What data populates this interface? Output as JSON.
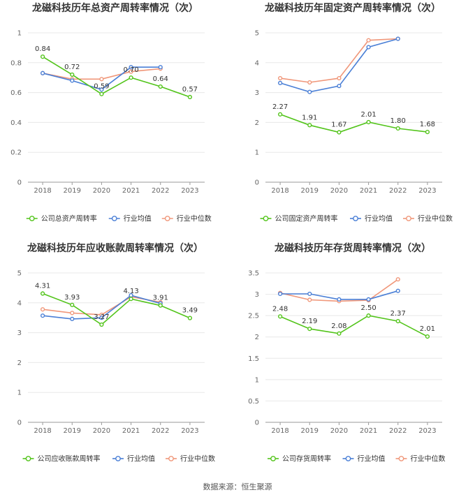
{
  "source_label": "数据来源：恒生聚源",
  "chart_data": [
    {
      "type": "line",
      "title": "龙磁科技历年总资产周转率情况（次）",
      "categories": [
        "2018",
        "2019",
        "2020",
        "2021",
        "2022",
        "2023"
      ],
      "ylim": [
        0,
        1
      ],
      "yticks": [
        "0",
        "0.2",
        "0.4",
        "0.6",
        "0.8",
        "1"
      ],
      "grid": true,
      "legend_position": "bottom",
      "series": [
        {
          "name": "公司总资产周转率",
          "color": "#52c41a",
          "values": [
            0.84,
            0.72,
            0.59,
            0.7,
            0.64,
            0.57
          ],
          "labels": [
            "0.84",
            "0.72",
            "0.59",
            "0.70",
            "0.64",
            "0.57"
          ]
        },
        {
          "name": "行业均值",
          "color": "#4a7fd6",
          "values": [
            0.73,
            0.68,
            0.62,
            0.77,
            0.77,
            null
          ]
        },
        {
          "name": "行业中位数",
          "color": "#f0977a",
          "values": [
            0.73,
            0.69,
            0.69,
            0.74,
            0.76,
            null
          ]
        }
      ]
    },
    {
      "type": "line",
      "title": "龙磁科技历年固定资产周转率情况（次）",
      "categories": [
        "2018",
        "2019",
        "2020",
        "2021",
        "2022",
        "2023"
      ],
      "ylim": [
        0,
        5
      ],
      "yticks": [
        "0",
        "1",
        "2",
        "3",
        "4",
        "5"
      ],
      "grid": true,
      "legend_position": "bottom",
      "series": [
        {
          "name": "公司固定资产周转率",
          "color": "#52c41a",
          "values": [
            2.27,
            1.91,
            1.67,
            2.01,
            1.8,
            1.68
          ],
          "labels": [
            "2.27",
            "1.91",
            "1.67",
            "2.01",
            "1.80",
            "1.68"
          ]
        },
        {
          "name": "行业均值",
          "color": "#4a7fd6",
          "values": [
            3.32,
            3.02,
            3.22,
            4.52,
            4.8,
            null
          ]
        },
        {
          "name": "行业中位数",
          "color": "#f0977a",
          "values": [
            3.48,
            3.34,
            3.48,
            4.75,
            4.8,
            null
          ]
        }
      ]
    },
    {
      "type": "line",
      "title": "龙磁科技历年应收账款周转率情况（次）",
      "categories": [
        "2018",
        "2019",
        "2020",
        "2021",
        "2022",
        "2023"
      ],
      "ylim": [
        0,
        5
      ],
      "yticks": [
        "0",
        "1",
        "2",
        "3",
        "4",
        "5"
      ],
      "grid": true,
      "legend_position": "bottom",
      "series": [
        {
          "name": "公司应收账款周转率",
          "color": "#52c41a",
          "values": [
            4.31,
            3.93,
            3.27,
            4.13,
            3.91,
            3.49
          ],
          "labels": [
            "4.31",
            "3.93",
            "3.27",
            "4.13",
            "3.91",
            "3.49"
          ]
        },
        {
          "name": "行业均值",
          "color": "#4a7fd6",
          "values": [
            3.57,
            3.46,
            3.5,
            4.25,
            3.98,
            null
          ]
        },
        {
          "name": "行业中位数",
          "color": "#f0977a",
          "values": [
            3.78,
            3.66,
            3.6,
            4.2,
            4.02,
            null
          ]
        }
      ]
    },
    {
      "type": "line",
      "title": "龙磁科技历年存货周转率情况（次）",
      "categories": [
        "2018",
        "2019",
        "2020",
        "2021",
        "2022",
        "2023"
      ],
      "ylim": [
        0,
        3.5
      ],
      "yticks": [
        "0",
        "0.5",
        "1",
        "1.5",
        "2",
        "2.5",
        "3",
        "3.5"
      ],
      "grid": true,
      "legend_position": "bottom",
      "series": [
        {
          "name": "公司存货周转率",
          "color": "#52c41a",
          "values": [
            2.48,
            2.19,
            2.08,
            2.5,
            2.37,
            2.01
          ],
          "labels": [
            "2.48",
            "2.19",
            "2.08",
            "2.50",
            "2.37",
            "2.01"
          ]
        },
        {
          "name": "行业均值",
          "color": "#4a7fd6",
          "values": [
            3.01,
            3.01,
            2.88,
            2.88,
            3.08,
            null
          ]
        },
        {
          "name": "行业中位数",
          "color": "#f0977a",
          "values": [
            3.03,
            2.87,
            2.84,
            2.86,
            3.35,
            null
          ]
        }
      ]
    }
  ]
}
